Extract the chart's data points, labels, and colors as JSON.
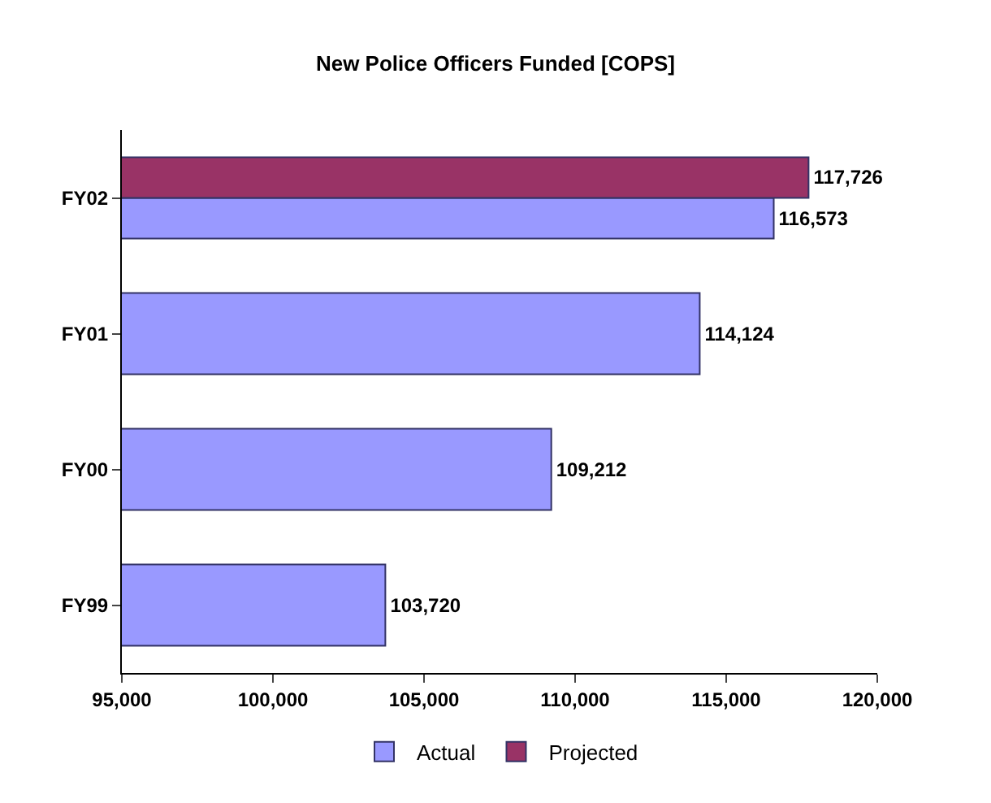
{
  "chart_data": {
    "type": "bar",
    "orientation": "horizontal",
    "title": "New Police Officers Funded [COPS]",
    "categories": [
      "FY02",
      "FY01",
      "FY00",
      "FY99"
    ],
    "series": [
      {
        "name": "Actual",
        "color": "#9999ff",
        "values": [
          116573,
          114124,
          109212,
          103720
        ],
        "value_labels": [
          "116,573",
          "114,124",
          "109,212",
          "103,720"
        ]
      },
      {
        "name": "Projected",
        "color": "#993366",
        "values": [
          117726,
          null,
          null,
          null
        ],
        "value_labels": [
          "117,726",
          null,
          null,
          null
        ]
      }
    ],
    "xlim": [
      95000,
      120000
    ],
    "xticks": [
      {
        "value": 95000,
        "label": "95,000"
      },
      {
        "value": 100000,
        "label": "100,000"
      },
      {
        "value": 105000,
        "label": "105,000"
      },
      {
        "value": 110000,
        "label": "110,000"
      },
      {
        "value": 115000,
        "label": "115,000"
      },
      {
        "value": 120000,
        "label": "120,000"
      }
    ],
    "legend": "bottom"
  }
}
